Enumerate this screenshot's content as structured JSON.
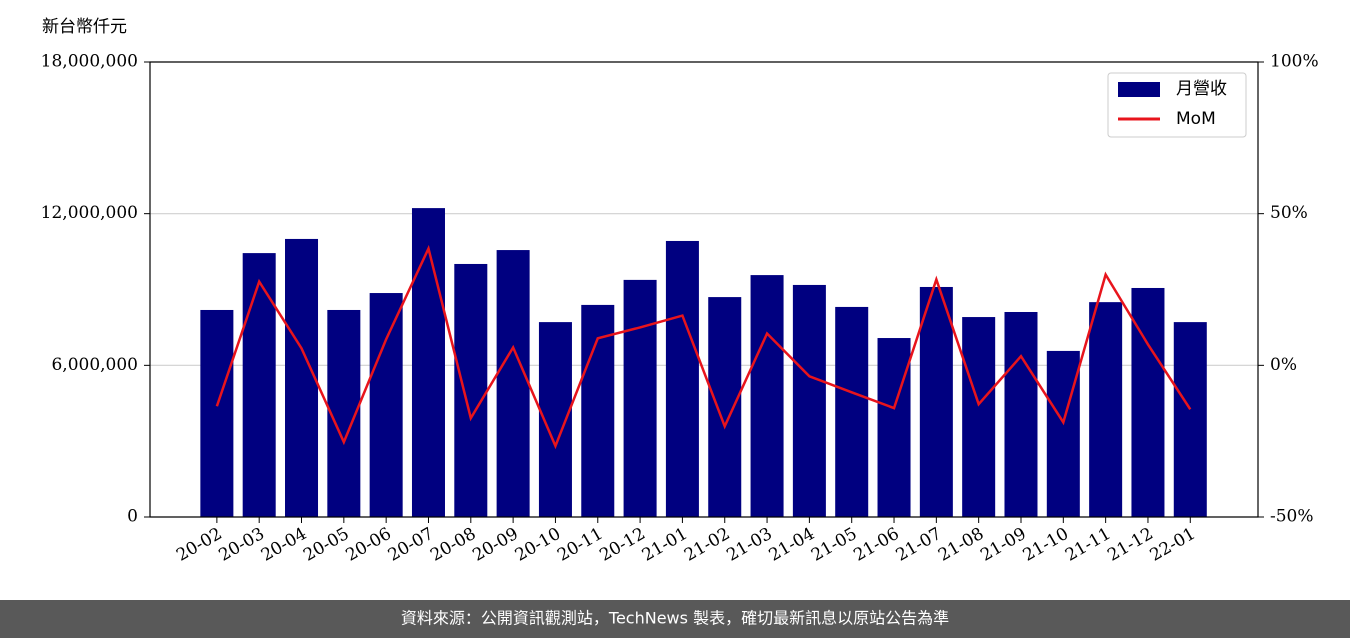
{
  "chart_data": {
    "type": "bar_line",
    "y_label": "新台幣仟元",
    "categories": [
      "20-02",
      "20-03",
      "20-04",
      "20-05",
      "20-06",
      "20-07",
      "20-08",
      "20-09",
      "20-10",
      "20-11",
      "20-12",
      "21-01",
      "21-02",
      "21-03",
      "21-04",
      "21-05",
      "21-06",
      "21-07",
      "21-08",
      "21-09",
      "21-10",
      "21-11",
      "21-12",
      "22-01"
    ],
    "series": [
      {
        "name": "月營收",
        "type": "bar",
        "color": "#000080",
        "values": [
          8190000,
          10440000,
          11000000,
          8190000,
          8860000,
          12220000,
          10010000,
          10560000,
          7710000,
          8390000,
          9380000,
          10920000,
          8700000,
          9570000,
          9180000,
          8310000,
          7080000,
          9100000,
          7910000,
          8110000,
          6570000,
          8500000,
          9060000,
          7710000
        ]
      },
      {
        "name": "MoM",
        "type": "line",
        "color": "#e8141c",
        "axis": "y2",
        "values": [
          -13.5,
          27.6,
          5.6,
          -25.3,
          8.6,
          38.5,
          -17.4,
          5.9,
          -26.6,
          8.9,
          12.5,
          16.4,
          -20.1,
          10.5,
          -3.6,
          -8.9,
          -14.1,
          28.3,
          -12.8,
          3.0,
          -18.8,
          29.9,
          6.9,
          -14.5
        ]
      }
    ],
    "ylim": [
      0,
      18000000
    ],
    "yticks": [
      0,
      {
        "value": 6000000,
        "label": "6,000,000"
      },
      {
        "value": 12000000,
        "label": "12,000,000"
      },
      {
        "value": 18000000,
        "label": "18,000,000"
      }
    ],
    "y2lim": [
      -50,
      100
    ],
    "y2ticks": [
      {
        "value": -50,
        "label": "-50%"
      },
      {
        "value": 0,
        "label": "0%"
      },
      {
        "value": 50,
        "label": "50%"
      },
      {
        "value": 100,
        "label": "100%"
      }
    ],
    "grid": true,
    "legend": "upper right",
    "footer": "資料來源：公開資訊觀測站，TechNews 製表，確切最新訊息以原站公告為準"
  }
}
